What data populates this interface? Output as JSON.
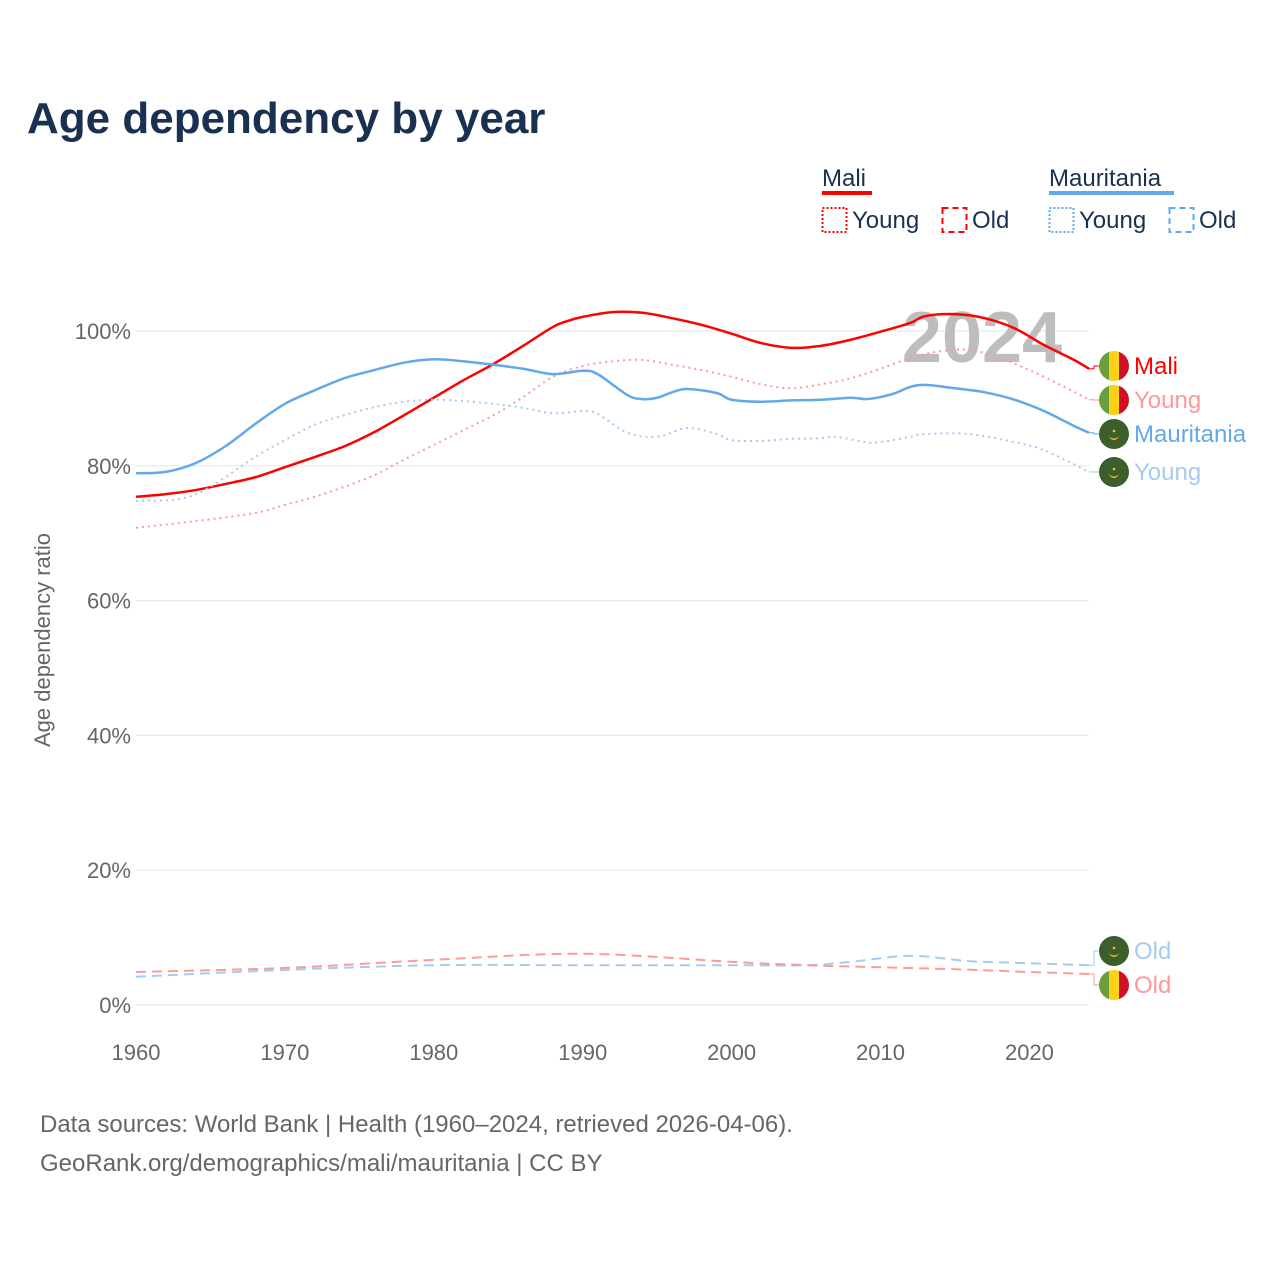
{
  "chart_data": {
    "type": "line",
    "title": "Age dependency by year",
    "ylabel": "Age dependency ratio",
    "xlabel": "",
    "xlim": [
      1960,
      2024
    ],
    "ylim": [
      0,
      100
    ],
    "x_ticks": [
      "1960",
      "1970",
      "1980",
      "1990",
      "2000",
      "2010",
      "2020"
    ],
    "y_ticks": [
      "0%",
      "20%",
      "40%",
      "60%",
      "80%",
      "100%"
    ],
    "grid": true,
    "year_watermark": "2024",
    "legend": {
      "groups": [
        {
          "name": "Mali",
          "color": "#ff0000",
          "items": [
            "Young",
            "Old"
          ]
        },
        {
          "name": "Mauritania",
          "color": "#62a8ea",
          "items": [
            "Young",
            "Old"
          ]
        }
      ],
      "placement": "top-right"
    },
    "series": [
      {
        "name": "Mali",
        "label": "Mali",
        "country": "Mali",
        "kind": "total",
        "color": "#ff0000",
        "x": [
          1960,
          1962,
          1964,
          1966,
          1968,
          1970,
          1972,
          1974,
          1976,
          1978,
          1980,
          1982,
          1984,
          1986,
          1988,
          1989,
          1990,
          1992,
          1994,
          1996,
          1998,
          2000,
          2002,
          2004,
          2006,
          2008,
          2010,
          2012,
          2013,
          2015,
          2017,
          2019,
          2021,
          2023,
          2024
        ],
        "y": [
          75.4,
          75.8,
          76.4,
          77.3,
          78.3,
          79.8,
          81.3,
          82.9,
          85.0,
          87.5,
          90.1,
          92.7,
          95.1,
          97.8,
          100.6,
          101.5,
          102.1,
          102.8,
          102.7,
          101.9,
          100.9,
          99.6,
          98.2,
          97.5,
          97.8,
          98.7,
          99.9,
          101.2,
          102.2,
          102.5,
          101.9,
          100.4,
          97.9,
          95.7,
          94.4
        ]
      },
      {
        "name": "Mali Young",
        "label": "Young",
        "country": "Mali",
        "kind": "young",
        "color": "#ff9999",
        "x": [
          1960,
          1964,
          1968,
          1970,
          1972,
          1974,
          1976,
          1978,
          1980,
          1982,
          1984,
          1986,
          1988,
          1990,
          1992,
          1994,
          1996,
          1998,
          2000,
          2002,
          2004,
          2006,
          2008,
          2010,
          2012,
          2014,
          2016,
          2018,
          2020,
          2022,
          2024
        ],
        "y": [
          70.8,
          71.8,
          73.0,
          74.2,
          75.4,
          76.9,
          78.6,
          80.9,
          83.1,
          85.3,
          87.5,
          90.2,
          93.2,
          94.8,
          95.5,
          95.7,
          95.0,
          94.2,
          93.2,
          92.1,
          91.5,
          92.1,
          93.0,
          94.4,
          96.0,
          97.0,
          97.2,
          96.0,
          94.2,
          92.1,
          89.8
        ]
      },
      {
        "name": "Mauritania",
        "label": "Mauritania",
        "country": "Mauritania",
        "kind": "total",
        "color": "#62a8ea",
        "x": [
          1960,
          1962,
          1964,
          1966,
          1968,
          1970,
          1972,
          1974,
          1976,
          1978,
          1980,
          1982,
          1984,
          1986,
          1988,
          1990,
          1991,
          1993,
          1994,
          1995,
          1996,
          1997,
          1999,
          2000,
          2002,
          2004,
          2006,
          2008,
          2009,
          2010,
          2011,
          2012,
          2013,
          2015,
          2017,
          2019,
          2021,
          2023,
          2024
        ],
        "y": [
          78.9,
          79.1,
          80.4,
          82.9,
          86.2,
          89.2,
          91.2,
          93.0,
          94.2,
          95.3,
          95.8,
          95.5,
          95.0,
          94.4,
          93.6,
          94.1,
          93.6,
          90.5,
          89.9,
          90.1,
          90.9,
          91.4,
          90.8,
          89.8,
          89.5,
          89.7,
          89.8,
          90.1,
          89.9,
          90.2,
          90.8,
          91.7,
          92.0,
          91.5,
          90.9,
          89.8,
          88.1,
          85.9,
          84.9
        ]
      },
      {
        "name": "Mauritania Young",
        "label": "Young",
        "country": "Mauritania",
        "kind": "young",
        "color": "#a6cbf0",
        "x": [
          1960,
          1963,
          1965,
          1968,
          1970,
          1972,
          1974,
          1976,
          1978,
          1980,
          1982,
          1984,
          1986,
          1988,
          1990,
          1991,
          1993,
          1995,
          1997,
          1999,
          2000,
          2002,
          2004,
          2006,
          2007,
          2009,
          2010,
          2012,
          2013,
          2016,
          2019,
          2021,
          2024
        ],
        "y": [
          74.8,
          75.1,
          76.9,
          81.3,
          83.8,
          86.1,
          87.5,
          88.7,
          89.5,
          89.8,
          89.6,
          89.2,
          88.6,
          87.8,
          88.1,
          87.7,
          84.9,
          84.3,
          85.6,
          84.7,
          83.8,
          83.7,
          84.0,
          84.1,
          84.3,
          83.5,
          83.5,
          84.3,
          84.7,
          84.7,
          83.5,
          82.3,
          79.1
        ]
      },
      {
        "name": "Mauritania Old",
        "label": "Old",
        "country": "Mauritania",
        "kind": "old",
        "color": "#a6cbf0",
        "x": [
          1960,
          1970,
          1980,
          1990,
          2000,
          2005,
          2008,
          2012,
          2016,
          2020,
          2024
        ],
        "y": [
          4.2,
          5.2,
          5.9,
          5.9,
          5.9,
          5.9,
          6.4,
          7.3,
          6.5,
          6.2,
          5.9
        ]
      },
      {
        "name": "Mali Old",
        "label": "Old",
        "country": "Mali",
        "kind": "old",
        "color": "#ff9999",
        "x": [
          1960,
          1970,
          1980,
          1990,
          2000,
          2005,
          2010,
          2015,
          2020,
          2024
        ],
        "y": [
          4.9,
          5.5,
          6.7,
          7.6,
          6.4,
          5.9,
          5.6,
          5.3,
          4.9,
          4.6
        ]
      }
    ]
  },
  "footer": {
    "line1": "Data sources: World Bank | Health (1960–2024, retrieved 2026-04-06).",
    "line2": "GeoRank.org/demographics/mali/mauritania | CC BY"
  }
}
